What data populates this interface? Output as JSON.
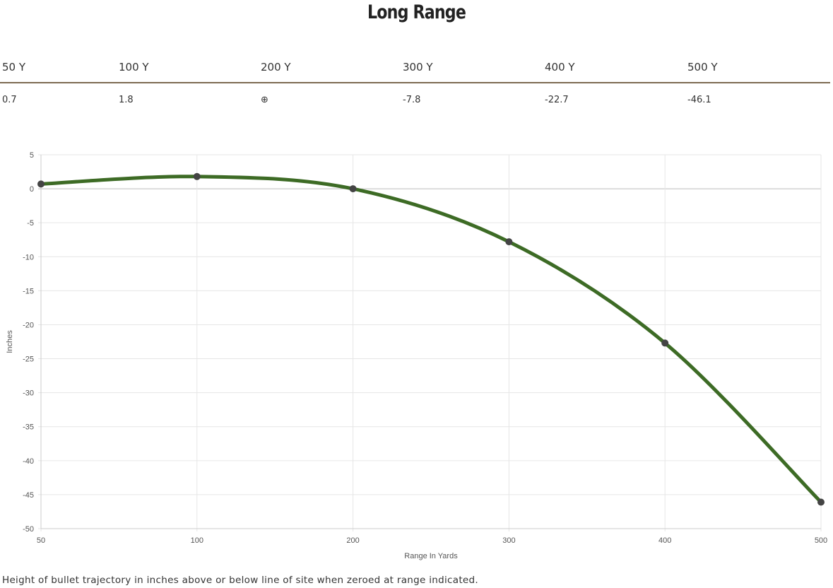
{
  "title": "Long Range",
  "table": {
    "headers": [
      "50 Y",
      "100 Y",
      "200 Y",
      "300 Y",
      "400 Y",
      "500 Y"
    ],
    "values": [
      "0.7",
      "1.8",
      "⊕",
      "-7.8",
      "-22.7",
      "-46.1"
    ]
  },
  "footnote": "Height of bullet trajectory in inches above or below line of site when zeroed at range indicated.",
  "colors": {
    "line": "#3d6b25",
    "point": "#444444",
    "rule": "#7d6b52"
  },
  "chart_data": {
    "type": "line",
    "categories": [
      "50",
      "100",
      "200",
      "300",
      "400",
      "500"
    ],
    "values": [
      0.7,
      1.8,
      0,
      -7.8,
      -22.7,
      -46.1
    ],
    "xlabel": "Range In Yards",
    "ylabel": "Inches",
    "ylim": [
      -50,
      5
    ],
    "yticks": [
      5,
      0,
      -5,
      -10,
      -15,
      -20,
      -25,
      -30,
      -35,
      -40,
      -45,
      -50
    ],
    "grid": true
  }
}
